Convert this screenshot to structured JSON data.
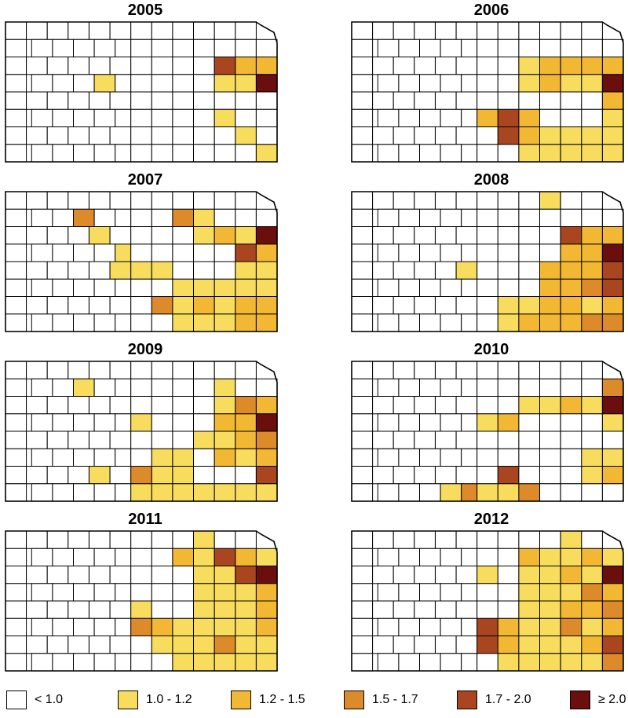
{
  "colors": {
    "lt_1_0": "#ffffff",
    "1_0_1_2": "#f7dc5d",
    "1_2_1_5": "#f2b733",
    "1_5_1_7": "#dd8a2b",
    "1_7_2_0": "#a9461f",
    "ge_2_0": "#6b0e0e",
    "outline": "#000000"
  },
  "legend": [
    {
      "label": "< 1.0",
      "color": "#ffffff"
    },
    {
      "label": "1.0 - 1.2",
      "color": "#f7dc5d"
    },
    {
      "label": "1.2 - 1.5",
      "color": "#f2b733"
    },
    {
      "label": "1.5 - 1.7",
      "color": "#dd8a2b"
    },
    {
      "label": "1.7 - 2.0",
      "color": "#a9461f"
    },
    {
      "label": "≥ 2.0",
      "color": "#6b0e0e"
    }
  ],
  "panels": [
    {
      "year": "2005",
      "counties": {
        "4,3": "1_0_1_2",
        "10,2": "1_7_2_0",
        "11,2": "1_2_1_5",
        "12,2": "1_2_1_5",
        "12,3": "ge_2_0",
        "11,3": "1_0_1_2",
        "10,5": "1_0_1_2",
        "11,6": "1_0_1_2",
        "12,7": "1_0_1_2",
        "10,3": "1_0_1_2"
      }
    },
    {
      "year": "2006",
      "counties": {
        "8,2": "1_0_1_2",
        "9,2": "1_2_1_5",
        "10,2": "1_2_1_5",
        "11,2": "1_2_1_5",
        "12,2": "1_2_1_5",
        "12,3": "ge_2_0",
        "8,3": "1_0_1_2",
        "9,3": "1_2_1_5",
        "10,3": "1_0_1_2",
        "11,3": "1_0_1_2",
        "12,4": "1_2_1_5",
        "12,5": "1_0_1_2",
        "12,6": "1_0_1_2",
        "6,5": "1_2_1_5",
        "7,5": "1_7_2_0",
        "8,5": "1_2_1_5",
        "7,6": "1_7_2_0",
        "8,6": "1_2_1_5",
        "8,7": "1_0_1_2",
        "9,7": "1_0_1_2",
        "10,7": "1_0_1_2",
        "11,7": "1_0_1_2",
        "12,7": "1_0_1_2",
        "9,6": "1_0_1_2",
        "10,6": "1_0_1_2",
        "11,6": "1_0_1_2"
      }
    },
    {
      "year": "2007",
      "counties": {
        "3,1": "1_5_1_7",
        "4,2": "1_0_1_2",
        "5,3": "1_0_1_2",
        "5,4": "1_0_1_2",
        "6,4": "1_0_1_2",
        "7,4": "1_0_1_2",
        "8,1": "1_5_1_7",
        "9,1": "1_0_1_2",
        "9,2": "1_0_1_2",
        "10,2": "1_2_1_5",
        "11,2": "1_0_1_2",
        "12,2": "ge_2_0",
        "11,3": "1_7_2_0",
        "12,3": "1_2_1_5",
        "12,4": "1_0_1_2",
        "11,4": "1_0_1_2",
        "8,5": "1_0_1_2",
        "9,5": "1_0_1_2",
        "10,5": "1_0_1_2",
        "11,5": "1_0_1_2",
        "12,5": "1_0_1_2",
        "7,6": "1_5_1_7",
        "8,6": "1_0_1_2",
        "9,6": "1_2_1_5",
        "10,6": "1_0_1_2",
        "11,6": "1_2_1_5",
        "12,6": "1_2_1_5",
        "8,7": "1_0_1_2",
        "9,7": "1_0_1_2",
        "10,7": "1_0_1_2",
        "11,7": "1_2_1_5",
        "12,7": "1_2_1_5"
      }
    },
    {
      "year": "2008",
      "counties": {
        "9,0": "1_0_1_2",
        "5,4": "1_0_1_2",
        "10,2": "1_7_2_0",
        "11,2": "1_2_1_5",
        "12,2": "1_2_1_5",
        "12,3": "ge_2_0",
        "9,4": "1_2_1_5",
        "10,3": "1_2_1_5",
        "11,3": "1_2_1_5",
        "9,5": "1_2_1_5",
        "10,4": "1_2_1_5",
        "11,4": "1_2_1_5",
        "12,4": "1_7_2_0",
        "10,5": "1_2_1_5",
        "11,5": "1_5_1_7",
        "12,5": "1_7_2_0",
        "7,6": "1_0_1_2",
        "8,6": "1_0_1_2",
        "9,6": "1_2_1_5",
        "10,6": "1_2_1_5",
        "11,6": "1_0_1_2",
        "12,6": "1_2_1_5",
        "7,7": "1_0_1_2",
        "8,7": "1_2_1_5",
        "9,7": "1_2_1_5",
        "10,7": "1_2_1_5",
        "11,7": "1_5_1_7",
        "12,7": "1_5_1_7"
      }
    },
    {
      "year": "2009",
      "counties": {
        "3,1": "1_0_1_2",
        "6,3": "1_0_1_2",
        "4,6": "1_0_1_2",
        "10,1": "1_0_1_2",
        "10,2": "1_0_1_2",
        "11,2": "1_5_1_7",
        "12,2": "1_2_1_5",
        "12,3": "ge_2_0",
        "10,3": "1_2_1_5",
        "11,3": "1_2_1_5",
        "12,4": "1_5_1_7",
        "9,4": "1_0_1_2",
        "10,4": "1_0_1_2",
        "11,4": "1_2_1_5",
        "12,5": "1_2_1_5",
        "10,5": "1_2_1_5",
        "11,5": "1_0_1_2",
        "6,6": "1_5_1_7",
        "7,5": "1_0_1_2",
        "8,5": "1_0_1_2",
        "7,6": "1_0_1_2",
        "8,6": "1_0_1_2",
        "12,6": "1_7_2_0",
        "6,7": "1_0_1_2",
        "7,7": "1_0_1_2",
        "8,7": "1_0_1_2",
        "9,7": "1_0_1_2",
        "10,7": "1_0_1_2",
        "11,7": "1_0_1_2",
        "12,7": "1_0_1_2"
      }
    },
    {
      "year": "2010",
      "counties": {
        "6,3": "1_0_1_2",
        "7,3": "1_2_1_5",
        "8,2": "1_0_1_2",
        "9,2": "1_0_1_2",
        "10,2": "1_2_1_5",
        "11,2": "1_0_1_2",
        "12,1": "1_5_1_7",
        "12,2": "ge_2_0",
        "12,3": "1_0_1_2",
        "11,5": "1_0_1_2",
        "12,5": "1_0_1_2",
        "11,6": "1_0_1_2",
        "12,6": "1_2_1_5",
        "7,6": "1_7_2_0",
        "4,7": "1_0_1_2",
        "5,7": "1_5_1_7",
        "6,7": "1_0_1_2",
        "7,7": "1_0_1_2",
        "8,7": "1_5_1_7"
      }
    },
    {
      "year": "2011",
      "counties": {
        "9,0": "1_0_1_2",
        "12,0": "1_2_1_5",
        "8,1": "1_2_1_5",
        "9,1": "1_0_1_2",
        "10,1": "1_7_2_0",
        "11,1": "1_2_1_5",
        "12,1": "1_0_1_2",
        "12,2": "ge_2_0",
        "11,2": "1_7_2_0",
        "9,2": "1_0_1_2",
        "10,2": "1_0_1_2",
        "9,3": "1_0_1_2",
        "10,3": "1_0_1_2",
        "11,3": "1_0_1_2",
        "12,3": "1_2_1_5",
        "6,4": "1_0_1_2",
        "9,4": "1_0_1_2",
        "10,4": "1_0_1_2",
        "11,4": "1_0_1_2",
        "12,4": "1_2_1_5",
        "6,5": "1_5_1_7",
        "7,5": "1_2_1_5",
        "8,5": "1_0_1_2",
        "9,5": "1_0_1_2",
        "10,5": "1_0_1_2",
        "11,5": "1_0_1_2",
        "12,5": "1_2_1_5",
        "7,6": "1_0_1_2",
        "8,6": "1_0_1_2",
        "9,6": "1_0_1_2",
        "10,6": "1_5_1_7",
        "11,6": "1_0_1_2",
        "12,6": "1_0_1_2",
        "8,7": "1_0_1_2",
        "9,7": "1_0_1_2",
        "10,7": "1_0_1_2",
        "11,7": "1_0_1_2",
        "12,7": "1_0_1_2"
      }
    },
    {
      "year": "2012",
      "counties": {
        "10,0": "1_0_1_2",
        "8,1": "1_2_1_5",
        "9,1": "1_0_1_2",
        "10,1": "1_0_1_2",
        "11,1": "1_2_1_5",
        "12,1": "1_0_1_2",
        "6,2": "1_0_1_2",
        "8,2": "1_0_1_2",
        "9,2": "1_0_1_2",
        "10,2": "1_2_1_5",
        "11,2": "1_0_1_2",
        "12,2": "ge_2_0",
        "8,3": "1_0_1_2",
        "9,3": "1_0_1_2",
        "10,3": "1_0_1_2",
        "11,3": "1_5_1_7",
        "12,3": "1_2_1_5",
        "8,4": "1_0_1_2",
        "9,4": "1_0_1_2",
        "10,4": "1_2_1_5",
        "11,4": "1_2_1_5",
        "12,4": "1_5_1_7",
        "6,5": "1_7_2_0",
        "7,5": "1_2_1_5",
        "8,5": "1_0_1_2",
        "9,5": "1_0_1_2",
        "10,5": "1_5_1_7",
        "11,5": "1_0_1_2",
        "12,5": "1_2_1_5",
        "6,6": "1_7_2_0",
        "7,6": "1_2_1_5",
        "8,6": "1_0_1_2",
        "9,6": "1_0_1_2",
        "10,6": "1_0_1_2",
        "11,6": "1_2_1_5",
        "12,6": "1_7_2_0",
        "7,7": "1_0_1_2",
        "8,7": "1_0_1_2",
        "9,7": "1_0_1_2",
        "10,7": "1_0_1_2",
        "11,7": "1_0_1_2",
        "12,7": "1_5_1_7"
      }
    }
  ]
}
